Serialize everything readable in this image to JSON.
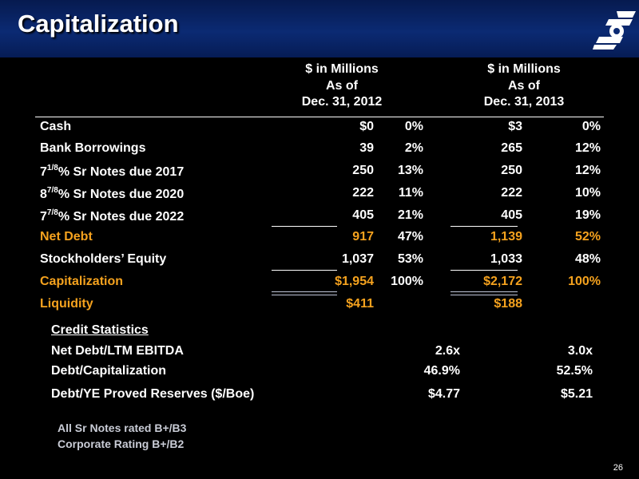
{
  "title": "Capitalization",
  "columns": [
    {
      "line1": "$ in Millions",
      "line2": "As of",
      "line3": "Dec. 31, 2012"
    },
    {
      "line1": "$ in Millions",
      "line2": "As of",
      "line3": "Dec. 31, 2013"
    }
  ],
  "rows": [
    {
      "label": "Cash",
      "v1": "$0",
      "p1": "0%",
      "v2": "$3",
      "p2": "0%"
    },
    {
      "label": "Bank Borrowings",
      "v1": "39",
      "p1": "2%",
      "v2": "265",
      "p2": "12%"
    },
    {
      "label_pre": "7",
      "label_sup": "1/8",
      "label_post": "% Sr Notes due 2017",
      "v1": "250",
      "p1": "13%",
      "v2": "250",
      "p2": "12%"
    },
    {
      "label_pre": "8",
      "label_sup": "7/8",
      "label_post": "% Sr Notes due 2020",
      "v1": "222",
      "p1": "11%",
      "v2": "222",
      "p2": "10%"
    },
    {
      "label_pre": "7",
      "label_sup": "7/8",
      "label_post": "% Sr Notes due 2022",
      "v1": "405",
      "p1": "21%",
      "v2": "405",
      "p2": "19%"
    },
    {
      "label": "Net Debt",
      "v1": "917",
      "p1": "47%",
      "v2": "1,139",
      "p2": "52%"
    },
    {
      "label": "Stockholders’ Equity",
      "v1": "1,037",
      "p1": "53%",
      "v2": "1,033",
      "p2": "48%"
    },
    {
      "label": "Capitalization",
      "v1": "$1,954",
      "p1": "100%",
      "v2": "$2,172",
      "p2": "100%"
    },
    {
      "label": "Liquidity",
      "v1": "$411",
      "p1": "",
      "v2": "$188",
      "p2": ""
    }
  ],
  "credit": {
    "heading": "Credit Statistics",
    "rows": [
      {
        "label": "Net Debt/LTM EBITDA",
        "v1": "2.6x",
        "v2": "3.0x"
      },
      {
        "label": "Debt/Capitalization",
        "v1": "46.9%",
        "v2": "52.5%"
      },
      {
        "label": "Debt/YE Proved Reserves ($/Boe)",
        "v1": "$4.77",
        "v2": "$5.21"
      }
    ]
  },
  "notes": [
    "All Sr Notes rated B+/B3",
    "Corporate Rating B+/B2"
  ],
  "page_number": "26",
  "colors": {
    "highlight": "#f5a21e",
    "header_bg": "#0b2a73"
  }
}
